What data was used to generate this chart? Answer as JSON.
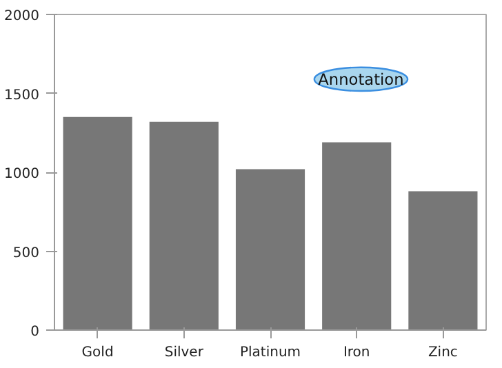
{
  "chart_data": {
    "type": "bar",
    "categories": [
      "Gold",
      "Silver",
      "Platinum",
      "Iron",
      "Zinc"
    ],
    "values": [
      1350,
      1320,
      1020,
      1190,
      880
    ],
    "color": "#777777",
    "ylim": [
      0,
      2000
    ],
    "yticks": [
      0,
      500,
      1000,
      1500,
      2000
    ],
    "grid": false,
    "annotations": [
      "Annotation"
    ]
  }
}
